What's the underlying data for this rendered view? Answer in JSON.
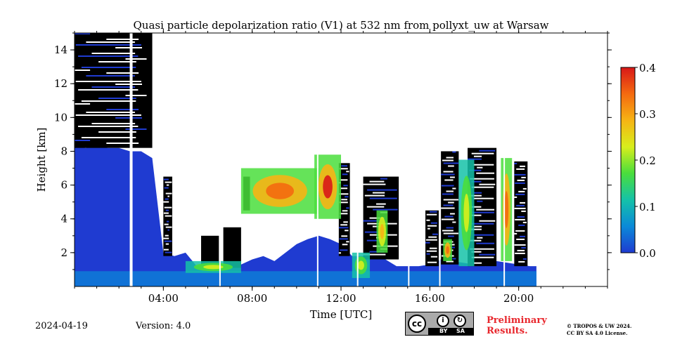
{
  "chart_data": {
    "type": "heatmap",
    "title": "Quasi particle depolarization ratio (V1) at 532 nm from pollyxt_uw at Warsaw",
    "xlabel": "Time [UTC]",
    "ylabel": "Height [km]",
    "xlim_hours": [
      0,
      24
    ],
    "ylim_km": [
      0,
      15
    ],
    "x_ticks": [
      {
        "hour": 4,
        "label": "04:00"
      },
      {
        "hour": 8,
        "label": "08:00"
      },
      {
        "hour": 12,
        "label": "12:00"
      },
      {
        "hour": 16,
        "label": "16:00"
      },
      {
        "hour": 20,
        "label": "20:00"
      }
    ],
    "y_ticks": [
      {
        "value": 2,
        "label": "2"
      },
      {
        "value": 4,
        "label": "4"
      },
      {
        "value": 6,
        "label": "6"
      },
      {
        "value": 8,
        "label": "8"
      },
      {
        "value": 10,
        "label": "10"
      },
      {
        "value": 12,
        "label": "12"
      },
      {
        "value": 14,
        "label": "14"
      }
    ],
    "colorbar": {
      "range": [
        0.0,
        0.4
      ],
      "ticks": [
        {
          "value": 0.0,
          "label": "0.0"
        },
        {
          "value": 0.1,
          "label": "0.1"
        },
        {
          "value": 0.2,
          "label": "0.2"
        },
        {
          "value": 0.3,
          "label": "0.3"
        },
        {
          "value": 0.4,
          "label": "0.4"
        }
      ],
      "colors": [
        "#1f3bd1",
        "#0a8ad8",
        "#15c2a8",
        "#4ade3c",
        "#d8ee1c",
        "#f6b414",
        "#f46a10",
        "#d81818"
      ]
    },
    "colors": {
      "nodata": "#ffffff",
      "masked": "#000000"
    },
    "low_signal_top_km": [
      [
        0.0,
        8.3
      ],
      [
        0.5,
        8.2
      ],
      [
        1.0,
        8.3
      ],
      [
        1.5,
        8.2
      ],
      [
        2.0,
        8.2
      ],
      [
        2.5,
        8.0
      ],
      [
        3.0,
        8.0
      ],
      [
        3.5,
        7.6
      ],
      [
        4.0,
        2.0
      ],
      [
        4.5,
        1.8
      ],
      [
        5.0,
        2.0
      ],
      [
        5.5,
        1.2
      ],
      [
        6.0,
        1.4
      ],
      [
        6.5,
        1.2
      ],
      [
        7.0,
        1.3
      ],
      [
        7.5,
        1.3
      ],
      [
        8.0,
        1.6
      ],
      [
        8.5,
        1.8
      ],
      [
        9.0,
        1.5
      ],
      [
        9.5,
        2.0
      ],
      [
        10.0,
        2.5
      ],
      [
        10.5,
        2.8
      ],
      [
        11.0,
        3.0
      ],
      [
        11.5,
        2.8
      ],
      [
        12.0,
        2.5
      ],
      [
        12.5,
        1.8
      ],
      [
        13.0,
        1.8
      ],
      [
        13.5,
        2.0
      ],
      [
        14.0,
        1.6
      ],
      [
        14.5,
        1.2
      ],
      [
        15.0,
        1.2
      ],
      [
        15.5,
        1.2
      ],
      [
        16.0,
        1.3
      ],
      [
        16.5,
        1.6
      ],
      [
        17.0,
        1.5
      ],
      [
        17.5,
        1.4
      ],
      [
        18.0,
        1.3
      ],
      [
        18.5,
        1.2
      ],
      [
        19.0,
        1.5
      ],
      [
        19.5,
        1.4
      ],
      [
        20.0,
        1.3
      ],
      [
        20.5,
        1.2
      ],
      [
        20.8,
        1.2
      ]
    ],
    "depol_features": [
      {
        "t0": 7.5,
        "t1": 11.0,
        "z0": 4.3,
        "z1": 7.0,
        "value": 0.32
      },
      {
        "t0": 10.8,
        "t1": 12.0,
        "z0": 4.0,
        "z1": 7.8,
        "value": 0.36
      },
      {
        "t0": 13.6,
        "t1": 14.1,
        "z0": 2.0,
        "z1": 4.5,
        "value": 0.3
      },
      {
        "t0": 16.6,
        "t1": 17.0,
        "z0": 1.5,
        "z1": 2.8,
        "value": 0.33
      },
      {
        "t0": 17.3,
        "t1": 18.0,
        "z0": 1.2,
        "z1": 7.5,
        "value": 0.2
      },
      {
        "t0": 19.2,
        "t1": 19.7,
        "z0": 1.5,
        "z1": 7.6,
        "value": 0.34
      },
      {
        "t0": 5.0,
        "t1": 7.5,
        "z0": 0.8,
        "z1": 1.5,
        "value": 0.2
      },
      {
        "t0": 12.5,
        "t1": 13.3,
        "z0": 0.5,
        "z1": 2.0,
        "value": 0.22
      }
    ],
    "cloud_columns": [
      {
        "t0": 0.0,
        "t1": 3.5,
        "z0": 8.2,
        "z1": 15.0
      },
      {
        "t0": 4.0,
        "t1": 4.4,
        "z0": 1.8,
        "z1": 6.5
      },
      {
        "t0": 5.7,
        "t1": 6.5,
        "z0": 1.2,
        "z1": 3.0
      },
      {
        "t0": 6.7,
        "t1": 7.5,
        "z0": 1.1,
        "z1": 3.5
      },
      {
        "t0": 7.6,
        "t1": 7.9,
        "z0": 4.5,
        "z1": 6.5
      },
      {
        "t0": 11.9,
        "t1": 12.4,
        "z0": 1.8,
        "z1": 7.3
      },
      {
        "t0": 13.0,
        "t1": 14.6,
        "z0": 1.6,
        "z1": 6.5
      },
      {
        "t0": 15.8,
        "t1": 16.4,
        "z0": 1.2,
        "z1": 4.5
      },
      {
        "t0": 16.5,
        "t1": 17.3,
        "z0": 1.3,
        "z1": 8.0
      },
      {
        "t0": 17.7,
        "t1": 19.0,
        "z0": 1.2,
        "z1": 8.2
      },
      {
        "t0": 19.8,
        "t1": 20.4,
        "z0": 1.2,
        "z1": 7.4
      }
    ],
    "data_gaps_hours": [
      2.55,
      6.55,
      10.95,
      12.75,
      15.05,
      16.45,
      19.35
    ]
  },
  "footer": {
    "date": "2024-04-19",
    "version": "Version: 4.0",
    "license_badge": {
      "cc": "cc",
      "by": "BY",
      "sa": "SA"
    },
    "preliminary_line1": "Preliminary",
    "preliminary_line2": "Results.",
    "copyright_line1": "© TROPOS & UW 2024.",
    "copyright_line2": "CC BY SA 4.0 License."
  }
}
